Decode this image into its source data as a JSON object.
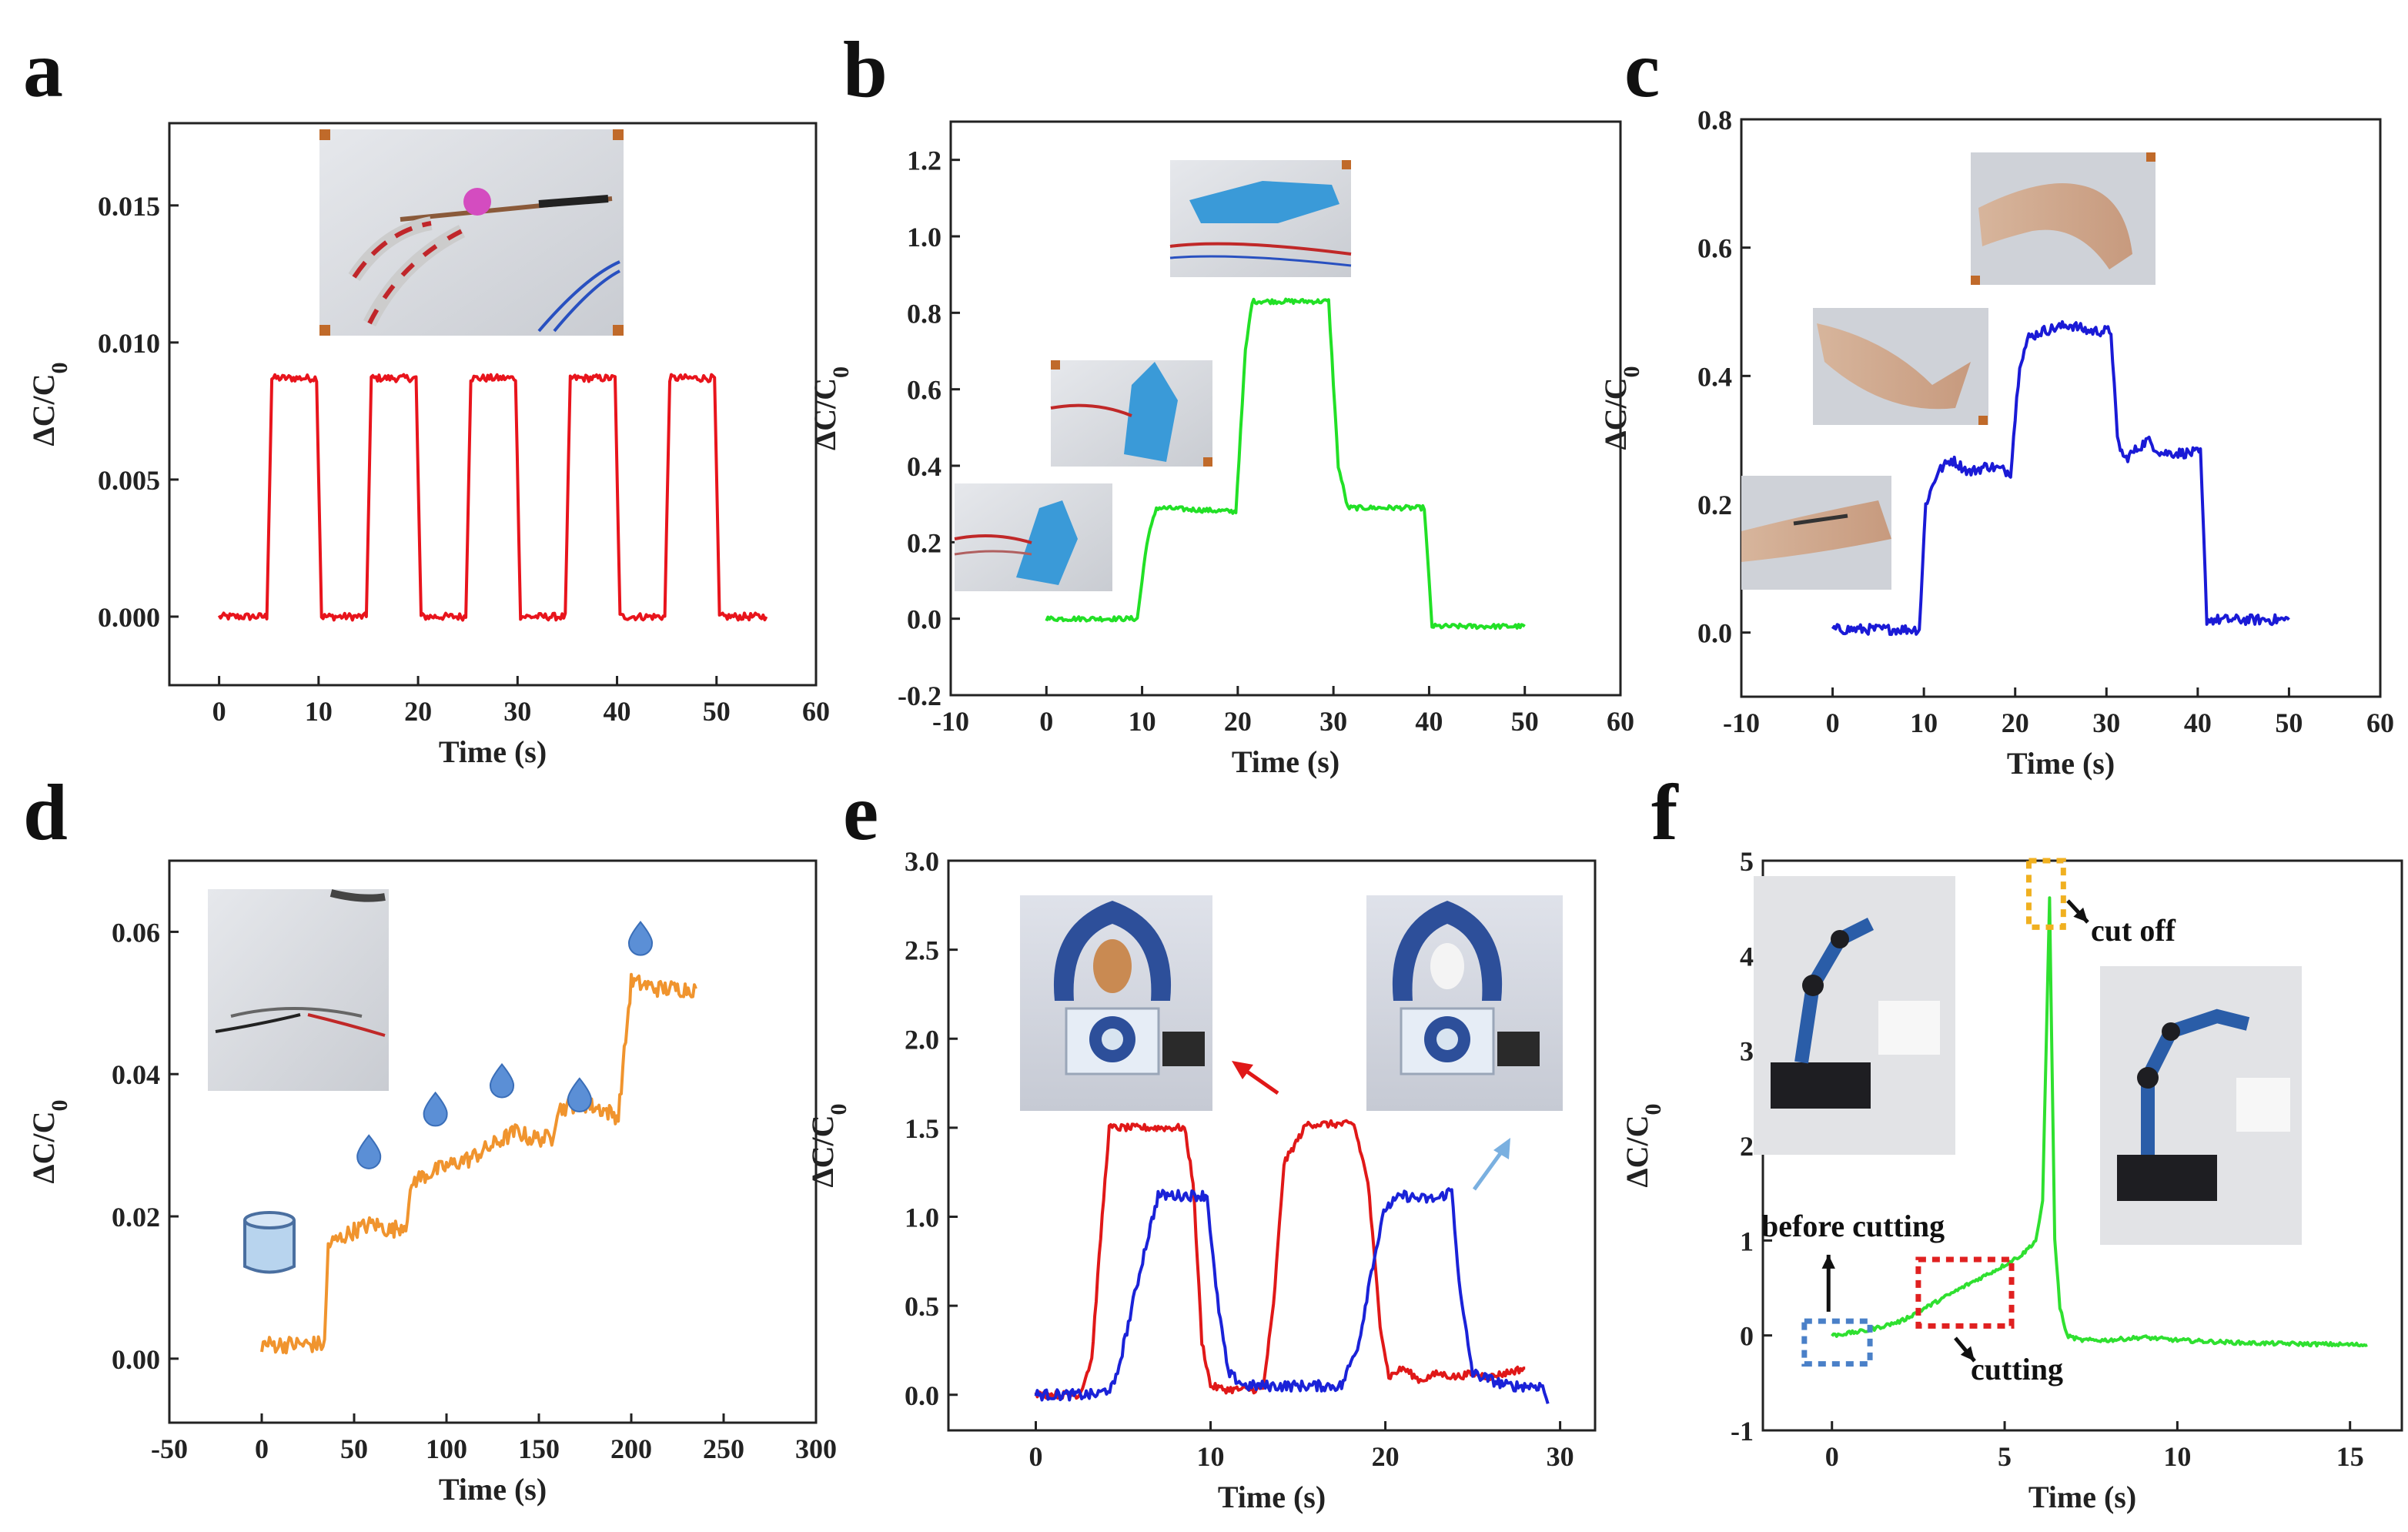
{
  "figure": {
    "panel_letters": [
      "a",
      "b",
      "c",
      "d",
      "e",
      "f"
    ]
  },
  "colors": {
    "a": "#e8141c",
    "b": "#22e026",
    "c": "#1a1ad6",
    "d": "#f0942e",
    "e_red": "#e01818",
    "e_blue": "#1a22d8",
    "f": "#2fe030",
    "drop": "#5b8fd6",
    "cup": "#b8d4ee",
    "box_blue": "#4a80c8",
    "box_red": "#e02020",
    "box_yellow": "#f0b020"
  },
  "chart_data": [
    {
      "panel": "a",
      "type": "line",
      "xlabel": "Time (s)",
      "ylabel": "ΔC/C0",
      "xlim": [
        -5,
        60
      ],
      "ylim": [
        -0.0025,
        0.018
      ],
      "xticks": [
        0,
        10,
        20,
        30,
        40,
        50,
        60
      ],
      "yticks": [
        0.0,
        0.005,
        0.01,
        0.015
      ],
      "ytick_labels": [
        "0.000",
        "0.005",
        "0.010",
        "0.015"
      ],
      "series": [
        {
          "name": "a",
          "color": "#e8141c",
          "noise": 0.00013,
          "x": [
            0,
            4.8,
            5.3,
            9.8,
            10.3,
            14.8,
            15.3,
            19.8,
            20.3,
            24.8,
            25.3,
            29.8,
            30.3,
            34.8,
            35.3,
            39.8,
            40.3,
            44.8,
            45.3,
            49.8,
            50.3,
            55
          ],
          "y": [
            0,
            0,
            0.0087,
            0.0087,
            0,
            0,
            0.0087,
            0.0087,
            0,
            0,
            0.0087,
            0.0087,
            0,
            0,
            0.0087,
            0.0087,
            0,
            0,
            0.0087,
            0.0087,
            0,
            0
          ]
        }
      ]
    },
    {
      "panel": "b",
      "type": "line",
      "xlabel": "Time (s)",
      "ylabel": "ΔC/C0",
      "xlim": [
        -10,
        60
      ],
      "ylim": [
        -0.2,
        1.3
      ],
      "xticks": [
        -10,
        0,
        10,
        20,
        30,
        40,
        50,
        60
      ],
      "yticks": [
        -0.2,
        0.0,
        0.2,
        0.4,
        0.6,
        0.8,
        1.0,
        1.2
      ],
      "ytick_labels": [
        "-0.2",
        "0.0",
        "0.2",
        "0.4",
        "0.6",
        "0.8",
        "1.0",
        "1.2"
      ],
      "series": [
        {
          "name": "b",
          "color": "#22e026",
          "noise": 0.006,
          "x": [
            0,
            9.5,
            10.5,
            11.5,
            19.8,
            20.8,
            21.5,
            29.5,
            30.5,
            31.5,
            39.5,
            40.3,
            50
          ],
          "y": [
            0,
            0,
            0.2,
            0.29,
            0.28,
            0.7,
            0.83,
            0.83,
            0.4,
            0.29,
            0.29,
            -0.02,
            -0.02
          ]
        }
      ]
    },
    {
      "panel": "c",
      "type": "line",
      "xlabel": "Time (s)",
      "ylabel": "ΔC/C0",
      "xlim": [
        -10,
        60
      ],
      "ylim": [
        -0.1,
        0.8
      ],
      "xticks": [
        -10,
        0,
        10,
        20,
        30,
        40,
        50,
        60
      ],
      "yticks": [
        0.0,
        0.2,
        0.4,
        0.6,
        0.8
      ],
      "ytick_labels": [
        "0.0",
        "0.2",
        "0.4",
        "0.6",
        "0.8"
      ],
      "series": [
        {
          "name": "c",
          "color": "#1a1ad6",
          "noise": 0.008,
          "x": [
            0,
            9.5,
            10.2,
            11.5,
            13,
            15,
            17,
            19.5,
            20.5,
            21.5,
            23,
            26,
            28,
            30.5,
            31.2,
            32,
            34.5,
            36,
            38,
            40.3,
            41,
            50
          ],
          "y": [
            0.005,
            0.005,
            0.2,
            0.25,
            0.27,
            0.25,
            0.26,
            0.25,
            0.42,
            0.46,
            0.47,
            0.48,
            0.47,
            0.47,
            0.3,
            0.27,
            0.3,
            0.28,
            0.28,
            0.28,
            0.02,
            0.02
          ]
        }
      ]
    },
    {
      "panel": "d",
      "type": "line",
      "xlabel": "Time (s)",
      "ylabel": "ΔC/C0",
      "xlim": [
        -50,
        300
      ],
      "ylim": [
        -0.009,
        0.07
      ],
      "xticks": [
        -50,
        0,
        50,
        100,
        150,
        200,
        250,
        300
      ],
      "yticks": [
        0.0,
        0.02,
        0.04,
        0.06
      ],
      "ytick_labels": [
        "0.00",
        "0.02",
        "0.04",
        "0.06"
      ],
      "series": [
        {
          "name": "d",
          "color": "#f0942e",
          "noise": 0.0012,
          "x": [
            0,
            34,
            36,
            50,
            60,
            70,
            78,
            82,
            90,
            100,
            110,
            112,
            125,
            138,
            145,
            157,
            160,
            172,
            185,
            193,
            197,
            200,
            215,
            235
          ],
          "y": [
            0.002,
            0.002,
            0.016,
            0.018,
            0.019,
            0.018,
            0.019,
            0.025,
            0.026,
            0.027,
            0.028,
            0.028,
            0.03,
            0.032,
            0.031,
            0.031,
            0.035,
            0.036,
            0.035,
            0.034,
            0.045,
            0.053,
            0.052,
            0.052
          ]
        }
      ]
    },
    {
      "panel": "e",
      "type": "line",
      "xlabel": "Time (s)",
      "ylabel": "ΔC/C0",
      "xlim": [
        -5,
        32
      ],
      "ylim": [
        -0.2,
        3.0
      ],
      "xticks": [
        0,
        10,
        20,
        30
      ],
      "yticks": [
        0.0,
        0.5,
        1.0,
        1.5,
        2.0,
        2.5,
        3.0
      ],
      "ytick_labels": [
        "0.0",
        "0.5",
        "1.0",
        "1.5",
        "2.0",
        "2.5",
        "3.0"
      ],
      "series": [
        {
          "name": "red",
          "color": "#e01818",
          "noise": 0.02,
          "x": [
            0,
            2.5,
            3.2,
            3.8,
            4.2,
            8.5,
            9.0,
            9.5,
            10.0,
            10.8,
            13,
            13.6,
            14.2,
            15.5,
            18.2,
            19.0,
            19.7,
            20.2,
            21,
            22,
            23,
            24,
            25,
            26,
            28
          ],
          "y": [
            0,
            0,
            0.2,
            1.0,
            1.5,
            1.5,
            1.2,
            0.3,
            0.05,
            0.03,
            0.03,
            0.5,
            1.3,
            1.52,
            1.52,
            1.2,
            0.4,
            0.1,
            0.15,
            0.08,
            0.12,
            0.1,
            0.12,
            0.1,
            0.15
          ]
        },
        {
          "name": "blue",
          "color": "#1a22d8",
          "noise": 0.03,
          "x": [
            0,
            3.5,
            4.5,
            5.3,
            6.2,
            7,
            8.5,
            9.8,
            10.3,
            11,
            12,
            14,
            16,
            17.5,
            18.5,
            19.2,
            20,
            21,
            22,
            23,
            23.8,
            24.3,
            25,
            27,
            28.5,
            29,
            29.3
          ],
          "y": [
            0,
            0,
            0.05,
            0.4,
            0.8,
            1.12,
            1.12,
            1.12,
            0.6,
            0.12,
            0.05,
            0.05,
            0.05,
            0.05,
            0.3,
            0.7,
            1.05,
            1.12,
            1.1,
            1.1,
            1.15,
            0.55,
            0.12,
            0.05,
            0.05,
            0.05,
            -0.05
          ]
        }
      ]
    },
    {
      "panel": "f",
      "type": "line",
      "xlabel": "Time (s)",
      "ylabel": "ΔC/C0",
      "xlim": [
        -2,
        16.5
      ],
      "ylim": [
        -1,
        5
      ],
      "xticks": [
        0,
        5,
        10,
        15
      ],
      "yticks": [
        -1,
        0,
        1,
        2,
        3,
        4,
        5
      ],
      "ytick_labels": [
        "-1",
        "0",
        "1",
        "2",
        "3",
        "4",
        "5"
      ],
      "series": [
        {
          "name": "f",
          "color": "#2fe030",
          "noise": 0.02,
          "x": [
            0,
            1,
            2,
            3,
            4,
            4.8,
            5.5,
            5.9,
            6.1,
            6.3,
            6.45,
            6.6,
            6.8,
            7.2,
            8,
            9,
            10,
            12,
            15.5
          ],
          "y": [
            0,
            0.05,
            0.15,
            0.35,
            0.55,
            0.7,
            0.85,
            1.0,
            1.4,
            4.6,
            1.0,
            0.3,
            0,
            -0.05,
            -0.05,
            -0.02,
            -0.05,
            -0.08,
            -0.1
          ]
        }
      ]
    }
  ],
  "annotations": {
    "f_cut_off": "cut off",
    "f_before_cutting": "before cutting",
    "f_cutting": "cutting"
  }
}
